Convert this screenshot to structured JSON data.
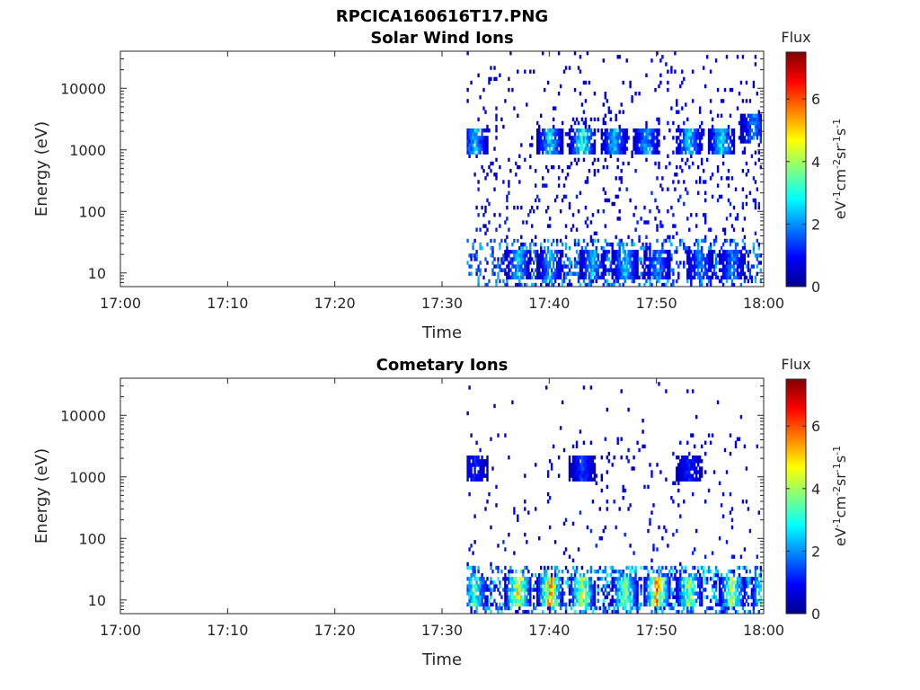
{
  "figure_title": "RPCICA160616T17.PNG",
  "colormap": [
    "#00008f",
    "#0000ff",
    "#0080ff",
    "#00ffff",
    "#80ff80",
    "#ffff00",
    "#ff8000",
    "#ff0000",
    "#800000"
  ],
  "chart_data": [
    {
      "type": "heatmap",
      "title": "Solar Wind Ions",
      "xlabel": "Time",
      "ylabel": "Energy (eV)",
      "x_ticks": [
        "17:00",
        "17:10",
        "17:20",
        "17:30",
        "17:40",
        "17:50",
        "18:00"
      ],
      "x_range": [
        "17:00",
        "18:00"
      ],
      "y_scale": "log",
      "y_ticks": [
        10,
        100,
        1000,
        10000
      ],
      "y_tick_labels": [
        "10",
        "100",
        "1000",
        "10000"
      ],
      "ylim": [
        6,
        40000
      ],
      "colorbar": {
        "title": "Flux",
        "ticks": [
          "0",
          "2",
          "4",
          "6"
        ],
        "range": [
          0,
          7.5
        ]
      },
      "data_coverage": [
        "17:32",
        "18:00"
      ],
      "flux_summary": [
        {
          "time": "17:33",
          "energy_eV": 1400,
          "flux": 3.0
        },
        {
          "time": "17:37",
          "energy_eV": 14,
          "flux": 3.0
        },
        {
          "time": "17:40",
          "energy_eV": 1400,
          "flux": 3.2
        },
        {
          "time": "17:40",
          "energy_eV": 14,
          "flux": 2.8
        },
        {
          "time": "17:43",
          "energy_eV": 1400,
          "flux": 4.0
        },
        {
          "time": "17:44",
          "energy_eV": 14,
          "flux": 3.0
        },
        {
          "time": "17:46",
          "energy_eV": 1400,
          "flux": 3.0
        },
        {
          "time": "17:47",
          "energy_eV": 14,
          "flux": 3.0
        },
        {
          "time": "17:49",
          "energy_eV": 1400,
          "flux": 2.8
        },
        {
          "time": "17:50",
          "energy_eV": 14,
          "flux": 2.6
        },
        {
          "time": "17:53",
          "energy_eV": 1400,
          "flux": 3.2
        },
        {
          "time": "17:54",
          "energy_eV": 14,
          "flux": 2.5
        },
        {
          "time": "17:56",
          "energy_eV": 1400,
          "flux": 3.4
        },
        {
          "time": "17:57",
          "energy_eV": 14,
          "flux": 2.5
        },
        {
          "time": "17:59",
          "energy_eV": 2200,
          "flux": 2.5
        }
      ]
    },
    {
      "type": "heatmap",
      "title": "Cometary Ions",
      "xlabel": "Time",
      "ylabel": "Energy (eV)",
      "x_ticks": [
        "17:00",
        "17:10",
        "17:20",
        "17:30",
        "17:40",
        "17:50",
        "18:00"
      ],
      "x_range": [
        "17:00",
        "18:00"
      ],
      "y_scale": "log",
      "y_ticks": [
        10,
        100,
        1000,
        10000
      ],
      "y_tick_labels": [
        "10",
        "100",
        "1000",
        "10000"
      ],
      "ylim": [
        6,
        40000
      ],
      "colorbar": {
        "title": "Flux",
        "ticks": [
          "0",
          "2",
          "4",
          "6"
        ],
        "range": [
          0,
          7.5
        ]
      },
      "data_coverage": [
        "17:32",
        "18:00"
      ],
      "flux_summary": [
        {
          "time": "17:33",
          "energy_eV": 1400,
          "flux": 1.5
        },
        {
          "time": "17:33",
          "energy_eV": 14,
          "flux": 4.2
        },
        {
          "time": "17:37",
          "energy_eV": 14,
          "flux": 6.0
        },
        {
          "time": "17:40",
          "energy_eV": 14,
          "flux": 6.5
        },
        {
          "time": "17:43",
          "energy_eV": 1400,
          "flux": 1.8
        },
        {
          "time": "17:43",
          "energy_eV": 14,
          "flux": 5.5
        },
        {
          "time": "17:47",
          "energy_eV": 14,
          "flux": 5.0
        },
        {
          "time": "17:50",
          "energy_eV": 14,
          "flux": 6.8
        },
        {
          "time": "17:53",
          "energy_eV": 1400,
          "flux": 1.5
        },
        {
          "time": "17:53",
          "energy_eV": 14,
          "flux": 5.0
        },
        {
          "time": "17:57",
          "energy_eV": 14,
          "flux": 5.0
        },
        {
          "time": "18:00",
          "energy_eV": 14,
          "flux": 5.5
        }
      ]
    }
  ]
}
